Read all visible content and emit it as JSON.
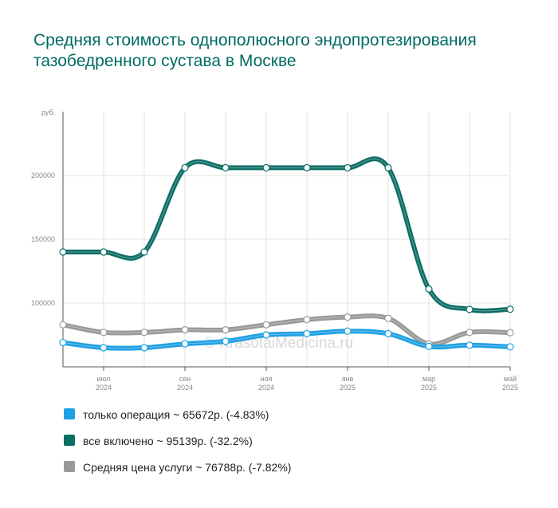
{
  "title": "Средняя стоимость однополюсного эндопротезирования тазобедренного сустава в Москве",
  "watermark": "© KrasotaiMedicina.ru",
  "chart_data": {
    "type": "line",
    "y_unit": "руб.",
    "ylim": [
      50000,
      250000
    ],
    "yticks": [
      100000,
      150000,
      200000
    ],
    "ytick_labels": [
      "100000",
      "150000",
      "200000"
    ],
    "xticks": [
      {
        "index": 1,
        "month": "июл",
        "year": "2024"
      },
      {
        "index": 3,
        "month": "сен",
        "year": "2024"
      },
      {
        "index": 5,
        "month": "ноя",
        "year": "2024"
      },
      {
        "index": 7,
        "month": "янв",
        "year": "2025"
      },
      {
        "index": 9,
        "month": "мар",
        "year": "2025"
      },
      {
        "index": 11,
        "month": "май",
        "year": "2025"
      }
    ],
    "x": [
      "2024-06",
      "2024-07",
      "2024-08",
      "2024-09",
      "2024-10",
      "2024-11",
      "2024-12",
      "2025-01",
      "2025-02",
      "2025-03",
      "2025-04",
      "2025-05"
    ],
    "grid": true,
    "legend_position": "bottom",
    "series": [
      {
        "name": "только операция",
        "summary": "только операция ~ 65672р. (-4.83%)",
        "color": "#1fa0e3",
        "values": [
          69000,
          65000,
          65000,
          68000,
          70000,
          75000,
          76000,
          78000,
          76000,
          66000,
          67000,
          65672
        ]
      },
      {
        "name": "все включено",
        "summary": "все включено ~ 95139р. (-32.2%)",
        "color": "#0d6e66",
        "values": [
          140000,
          140000,
          140000,
          206000,
          206000,
          206000,
          206000,
          206000,
          206000,
          111000,
          95000,
          95139
        ]
      },
      {
        "name": "Средняя цена услуги",
        "summary": "Средняя цена услуги ~ 76788р. (-7.82%)",
        "color": "#999999",
        "values": [
          83000,
          77000,
          77000,
          79000,
          79000,
          83000,
          87000,
          89000,
          88000,
          68000,
          77000,
          76788
        ]
      }
    ]
  }
}
